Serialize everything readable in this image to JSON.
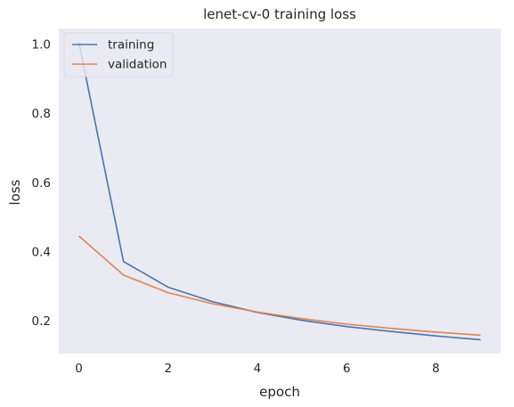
{
  "chart_data": {
    "type": "line",
    "title": "lenet-cv-0 training loss",
    "xlabel": "epoch",
    "ylabel": "loss",
    "x": [
      0,
      1,
      2,
      3,
      4,
      5,
      6,
      7,
      8,
      9
    ],
    "xlim": [
      -0.45,
      9.45
    ],
    "ylim": [
      0.105,
      1.045
    ],
    "xticks": [
      0,
      2,
      4,
      6,
      8
    ],
    "yticks": [
      0.2,
      0.4,
      0.6,
      0.8,
      1.0
    ],
    "xtick_labels": [
      "0",
      "2",
      "4",
      "6",
      "8"
    ],
    "ytick_labels": [
      "0.2",
      "0.4",
      "0.6",
      "0.8",
      "1.0"
    ],
    "grid": false,
    "legend_position": "top-left",
    "background": "#eaeaf2",
    "series": [
      {
        "name": "training",
        "color": "#4c72b0",
        "values": [
          1.005,
          0.371,
          0.297,
          0.255,
          0.224,
          0.201,
          0.183,
          0.169,
          0.156,
          0.145
        ]
      },
      {
        "name": "validation",
        "color": "#dd8452",
        "values": [
          0.445,
          0.332,
          0.281,
          0.249,
          0.225,
          0.206,
          0.19,
          0.178,
          0.167,
          0.158
        ]
      }
    ]
  }
}
